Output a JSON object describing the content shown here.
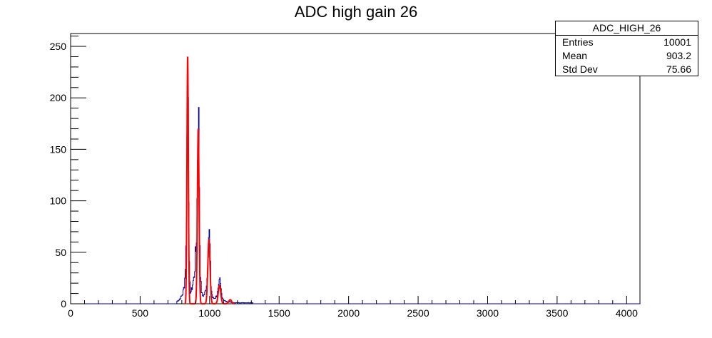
{
  "chart_data": {
    "type": "histogram",
    "title": "ADC high gain 26",
    "xlabel": "",
    "ylabel": "",
    "xlim": [
      0,
      4096
    ],
    "ylim": [
      0,
      262.5
    ],
    "x_ticks": [
      0,
      500,
      1000,
      1500,
      2000,
      2500,
      3000,
      3500,
      4000
    ],
    "y_ticks": [
      0,
      50,
      100,
      150,
      200,
      250
    ],
    "colors": {
      "histogram": "#000099",
      "fit": "#ff0000"
    },
    "series": [
      {
        "kind": "histogram",
        "points": [
          [
            760,
            2
          ],
          [
            780,
            4
          ],
          [
            795,
            7
          ],
          [
            805,
            10
          ],
          [
            812,
            15
          ],
          [
            818,
            20
          ],
          [
            822,
            30
          ],
          [
            826,
            45
          ],
          [
            830,
            60
          ],
          [
            834,
            115
          ],
          [
            838,
            205
          ],
          [
            840,
            238
          ],
          [
            842,
            250
          ],
          [
            844,
            230
          ],
          [
            846,
            200
          ],
          [
            848,
            120
          ],
          [
            850,
            60
          ],
          [
            852,
            35
          ],
          [
            856,
            18
          ],
          [
            860,
            12
          ],
          [
            865,
            12
          ],
          [
            870,
            14
          ],
          [
            875,
            18
          ],
          [
            880,
            22
          ],
          [
            885,
            25
          ],
          [
            890,
            30
          ],
          [
            895,
            45
          ],
          [
            900,
            52
          ],
          [
            905,
            70
          ],
          [
            908,
            100
          ],
          [
            912,
            150
          ],
          [
            915,
            185
          ],
          [
            918,
            191
          ],
          [
            920,
            172
          ],
          [
            923,
            140
          ],
          [
            926,
            80
          ],
          [
            930,
            40
          ],
          [
            934,
            22
          ],
          [
            940,
            12
          ],
          [
            946,
            8
          ],
          [
            952,
            8
          ],
          [
            960,
            9
          ],
          [
            968,
            12
          ],
          [
            975,
            18
          ],
          [
            980,
            25
          ],
          [
            985,
            40
          ],
          [
            988,
            55
          ],
          [
            991,
            65
          ],
          [
            994,
            70
          ],
          [
            997,
            66
          ],
          [
            1000,
            55
          ],
          [
            1004,
            35
          ],
          [
            1008,
            18
          ],
          [
            1014,
            10
          ],
          [
            1020,
            6
          ],
          [
            1030,
            5
          ],
          [
            1040,
            6
          ],
          [
            1050,
            8
          ],
          [
            1058,
            12
          ],
          [
            1064,
            16
          ],
          [
            1068,
            20
          ],
          [
            1072,
            22
          ],
          [
            1076,
            18
          ],
          [
            1080,
            14
          ],
          [
            1086,
            8
          ],
          [
            1094,
            5
          ],
          [
            1105,
            3
          ],
          [
            1120,
            2
          ],
          [
            1140,
            2
          ],
          [
            1160,
            1
          ],
          [
            1190,
            1
          ],
          [
            1230,
            1
          ],
          [
            1270,
            1
          ],
          [
            1310,
            1
          ]
        ]
      },
      {
        "kind": "fit",
        "peaks": [
          {
            "mean": 842,
            "amplitude": 240,
            "sigma": 5
          },
          {
            "mean": 918,
            "amplitude": 170,
            "sigma": 6
          },
          {
            "mean": 995,
            "amplitude": 62,
            "sigma": 8
          },
          {
            "mean": 1071,
            "amplitude": 18,
            "sigma": 9
          },
          {
            "mean": 1148,
            "amplitude": 4,
            "sigma": 10
          }
        ]
      }
    ]
  },
  "stats": {
    "name": "ADC_HIGH_26",
    "rows": [
      {
        "label": "Entries",
        "value": "10001"
      },
      {
        "label": "Mean",
        "value": "903.2"
      },
      {
        "label": "Std Dev",
        "value": "75.66"
      }
    ]
  }
}
